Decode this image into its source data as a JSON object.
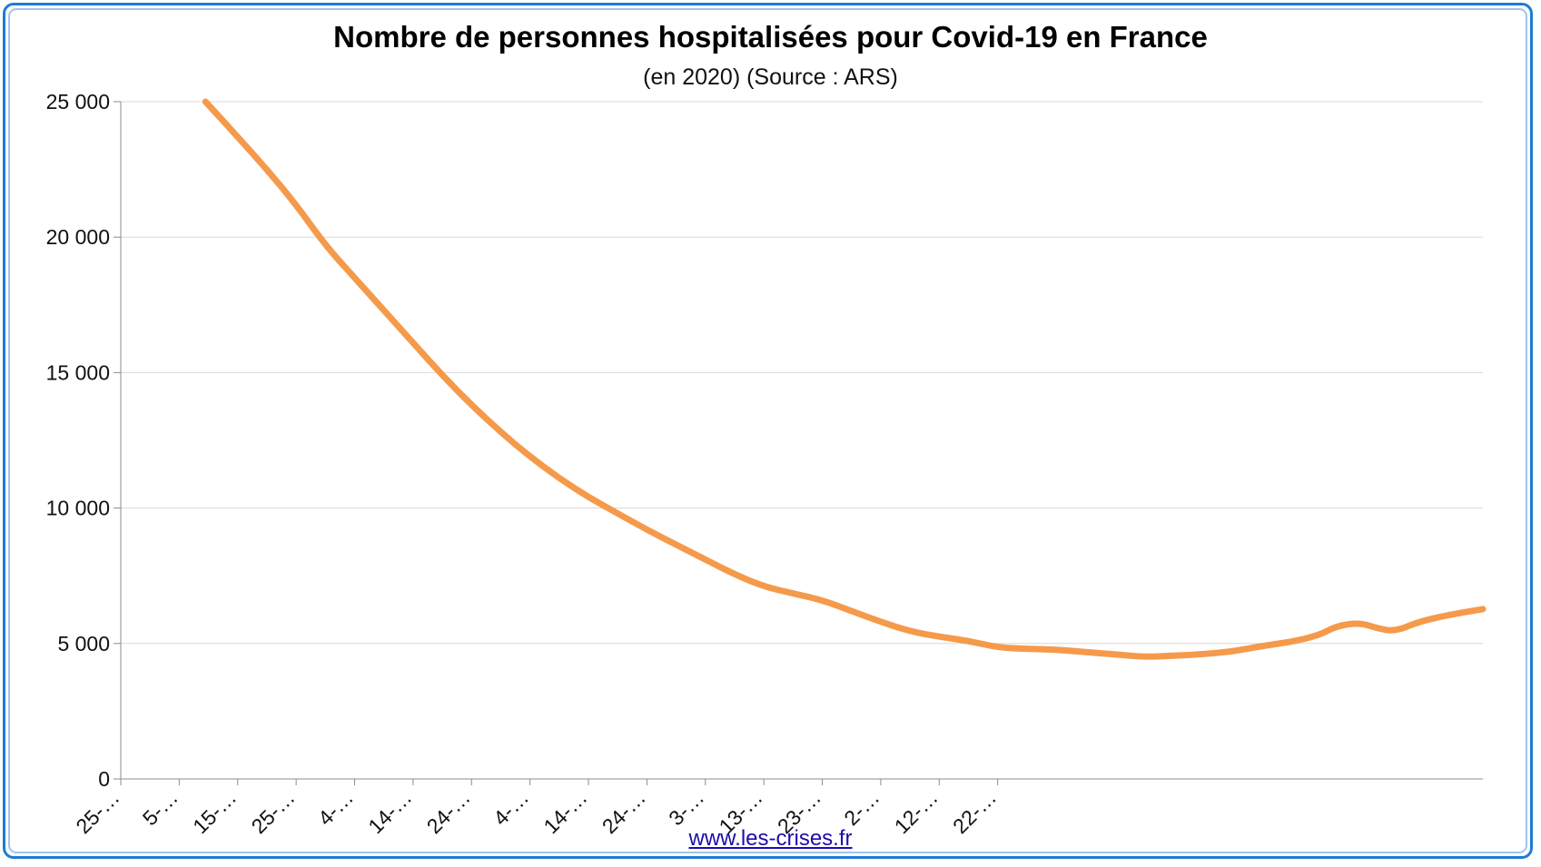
{
  "chart_data": {
    "type": "line",
    "title": "Nombre de personnes hospitalisées pour Covid-19 en France",
    "subtitle": "(en 2020) (Source : ARS)",
    "xlabel": "",
    "ylabel": "",
    "ylim": [
      0,
      25000
    ],
    "yticks": [
      0,
      5000,
      10000,
      15000,
      20000,
      25000
    ],
    "ytick_labels": [
      "0",
      "5 000",
      "10 000",
      "15 000",
      "20 000",
      "25 000"
    ],
    "xtick_labels": [
      "25-…",
      "5-…",
      "15-…",
      "25-…",
      "4-…",
      "14-…",
      "24-…",
      "4-…",
      "14-…",
      "24-…",
      "3-…",
      "13-…",
      "23-…",
      "2-…",
      "12-…",
      "22-…"
    ],
    "grid": true,
    "line_color": "#f59a4b",
    "series": [
      {
        "values": [
          [
            14.5,
            25000
          ],
          [
            20,
            23700
          ],
          [
            25,
            22500
          ],
          [
            30,
            21200
          ],
          [
            35,
            19700
          ],
          [
            40,
            18500
          ],
          [
            45,
            17300
          ],
          [
            50,
            16100
          ],
          [
            55,
            14900
          ],
          [
            60,
            13800
          ],
          [
            65,
            12800
          ],
          [
            70,
            11900
          ],
          [
            75,
            11100
          ],
          [
            80,
            10400
          ],
          [
            85,
            9800
          ],
          [
            90,
            9200
          ],
          [
            95,
            8650
          ],
          [
            100,
            8100
          ],
          [
            105,
            7550
          ],
          [
            110,
            7100
          ],
          [
            115,
            6850
          ],
          [
            120,
            6600
          ],
          [
            125,
            6200
          ],
          [
            130,
            5800
          ],
          [
            135,
            5450
          ],
          [
            140,
            5250
          ],
          [
            145,
            5100
          ],
          [
            150,
            4850
          ],
          [
            155,
            4800
          ],
          [
            160,
            4780
          ],
          [
            165,
            4680
          ],
          [
            170,
            4600
          ],
          [
            175,
            4500
          ],
          [
            180,
            4550
          ],
          [
            185,
            4600
          ],
          [
            190,
            4700
          ],
          [
            195,
            4900
          ],
          [
            200,
            5050
          ],
          [
            205,
            5300
          ],
          [
            208,
            5650
          ],
          [
            212,
            5770
          ],
          [
            215,
            5550
          ],
          [
            218,
            5450
          ],
          [
            222,
            5800
          ],
          [
            227,
            6050
          ],
          [
            233,
            6270
          ]
        ]
      }
    ]
  },
  "source_link": "www.les-crises.fr"
}
